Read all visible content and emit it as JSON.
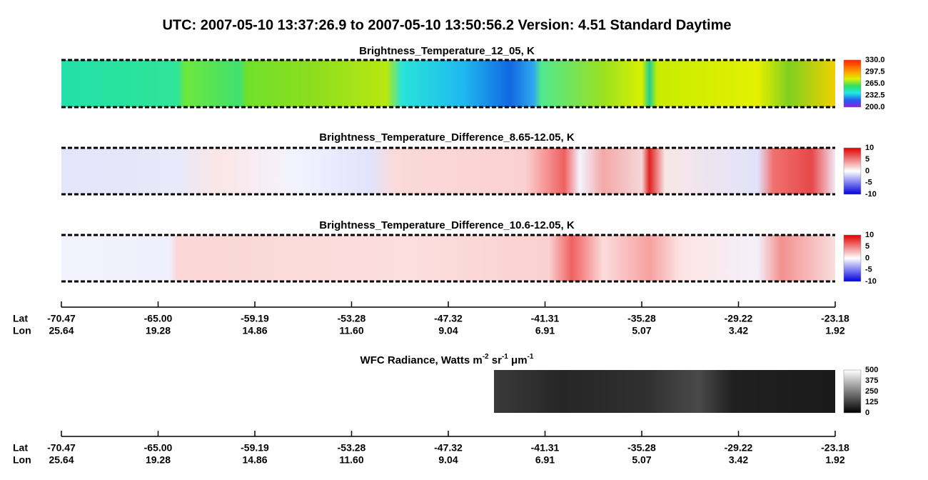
{
  "title": "UTC:  2007-05-10   13:37:26.9  to  2007-05-10   13:50:56.2    Version: 4.51  Standard Daytime",
  "panels": [
    {
      "title": "Brightness_Temperature_12_05, K",
      "colorbar": [
        "330.0",
        "297.5",
        "265.0",
        "232.5",
        "200.0"
      ]
    },
    {
      "title": "Brightness_Temperature_Difference_8.65-12.05, K",
      "colorbar": [
        "10",
        "5",
        "0",
        "-5",
        "-10"
      ]
    },
    {
      "title": "Brightness_Temperature_Difference_10.6-12.05, K",
      "colorbar": [
        "10",
        "5",
        "0",
        "-5",
        "-10"
      ]
    },
    {
      "title": [
        "WFC Radiance, Watts m",
        "-2",
        " sr",
        "-1",
        " μm",
        "-1"
      ],
      "colorbar": [
        "500",
        "375",
        "250",
        "125",
        "0"
      ]
    }
  ],
  "axis": {
    "lat_label": "Lat",
    "lon_label": "Lon",
    "lat": [
      "-70.47",
      "-65.00",
      "-59.19",
      "-53.28",
      "-47.32",
      "-41.31",
      "-35.28",
      "-29.22",
      "-23.18"
    ],
    "lon": [
      "25.64",
      "19.28",
      "14.86",
      "11.60",
      "9.04",
      "6.91",
      "5.07",
      "3.42",
      "1.92"
    ]
  }
}
